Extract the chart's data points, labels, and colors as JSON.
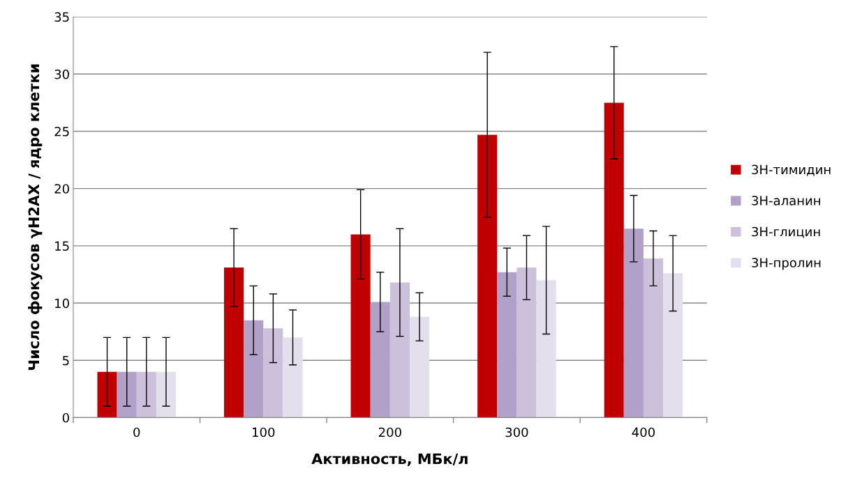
{
  "chart_data": {
    "type": "bar",
    "xlabel": "Активность, МБк/л",
    "ylabel": "Число фокусов γH2AX / ядро клетки",
    "categories": [
      "0",
      "100",
      "200",
      "300",
      "400"
    ],
    "ylim": [
      0,
      35
    ],
    "yticks": [
      0,
      5,
      10,
      15,
      20,
      25,
      30,
      35
    ],
    "grid": "y",
    "legend": "right",
    "series": [
      {
        "name": "3H-тимидин",
        "color": "#c00000",
        "values": [
          4,
          13.1,
          16,
          24.7,
          27.5
        ],
        "errors": [
          3,
          3.4,
          3.9,
          7.2,
          4.9
        ]
      },
      {
        "name": "3H-аланин",
        "color": "#b1a0c7",
        "values": [
          4,
          8.5,
          10.1,
          12.7,
          16.5
        ],
        "errors": [
          3,
          3,
          2.6,
          2.1,
          2.9
        ]
      },
      {
        "name": "3H-глицин",
        "color": "#ccc0da",
        "values": [
          4,
          7.8,
          11.8,
          13.1,
          13.9
        ],
        "errors": [
          3,
          3,
          4.7,
          2.8,
          2.4
        ]
      },
      {
        "name": "3H-пролин",
        "color": "#e4dfec",
        "values": [
          4,
          7,
          8.8,
          12,
          12.6
        ],
        "errors": [
          3,
          2.4,
          2.1,
          4.7,
          3.3
        ]
      }
    ]
  }
}
